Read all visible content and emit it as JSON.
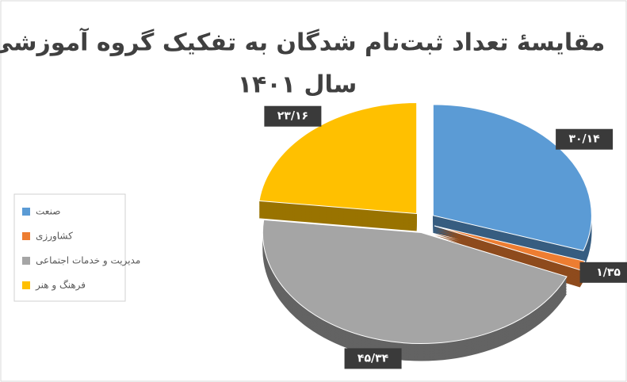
{
  "chart_data": {
    "type": "pie",
    "title": "مقایسهٔ تعداد ثبت‌نام شدگان به تفکیک گروه آموزشی",
    "subtitle": "سال ۱۴۰۱",
    "categories": [
      "صنعت",
      "کشاورزی",
      "مدیریت و خدمات اجتماعی",
      "فرهنگ و هنر"
    ],
    "values": [
      30.14,
      1.35,
      45.34,
      23.16
    ],
    "value_labels": [
      "۳۰/۱۴",
      "۱/۳۵",
      "۴۵/۳۴",
      "۲۳/۱۶"
    ],
    "colors": [
      "#5b9bd5",
      "#ed7d31",
      "#a5a5a5",
      "#ffc000"
    ],
    "legend": "left"
  }
}
